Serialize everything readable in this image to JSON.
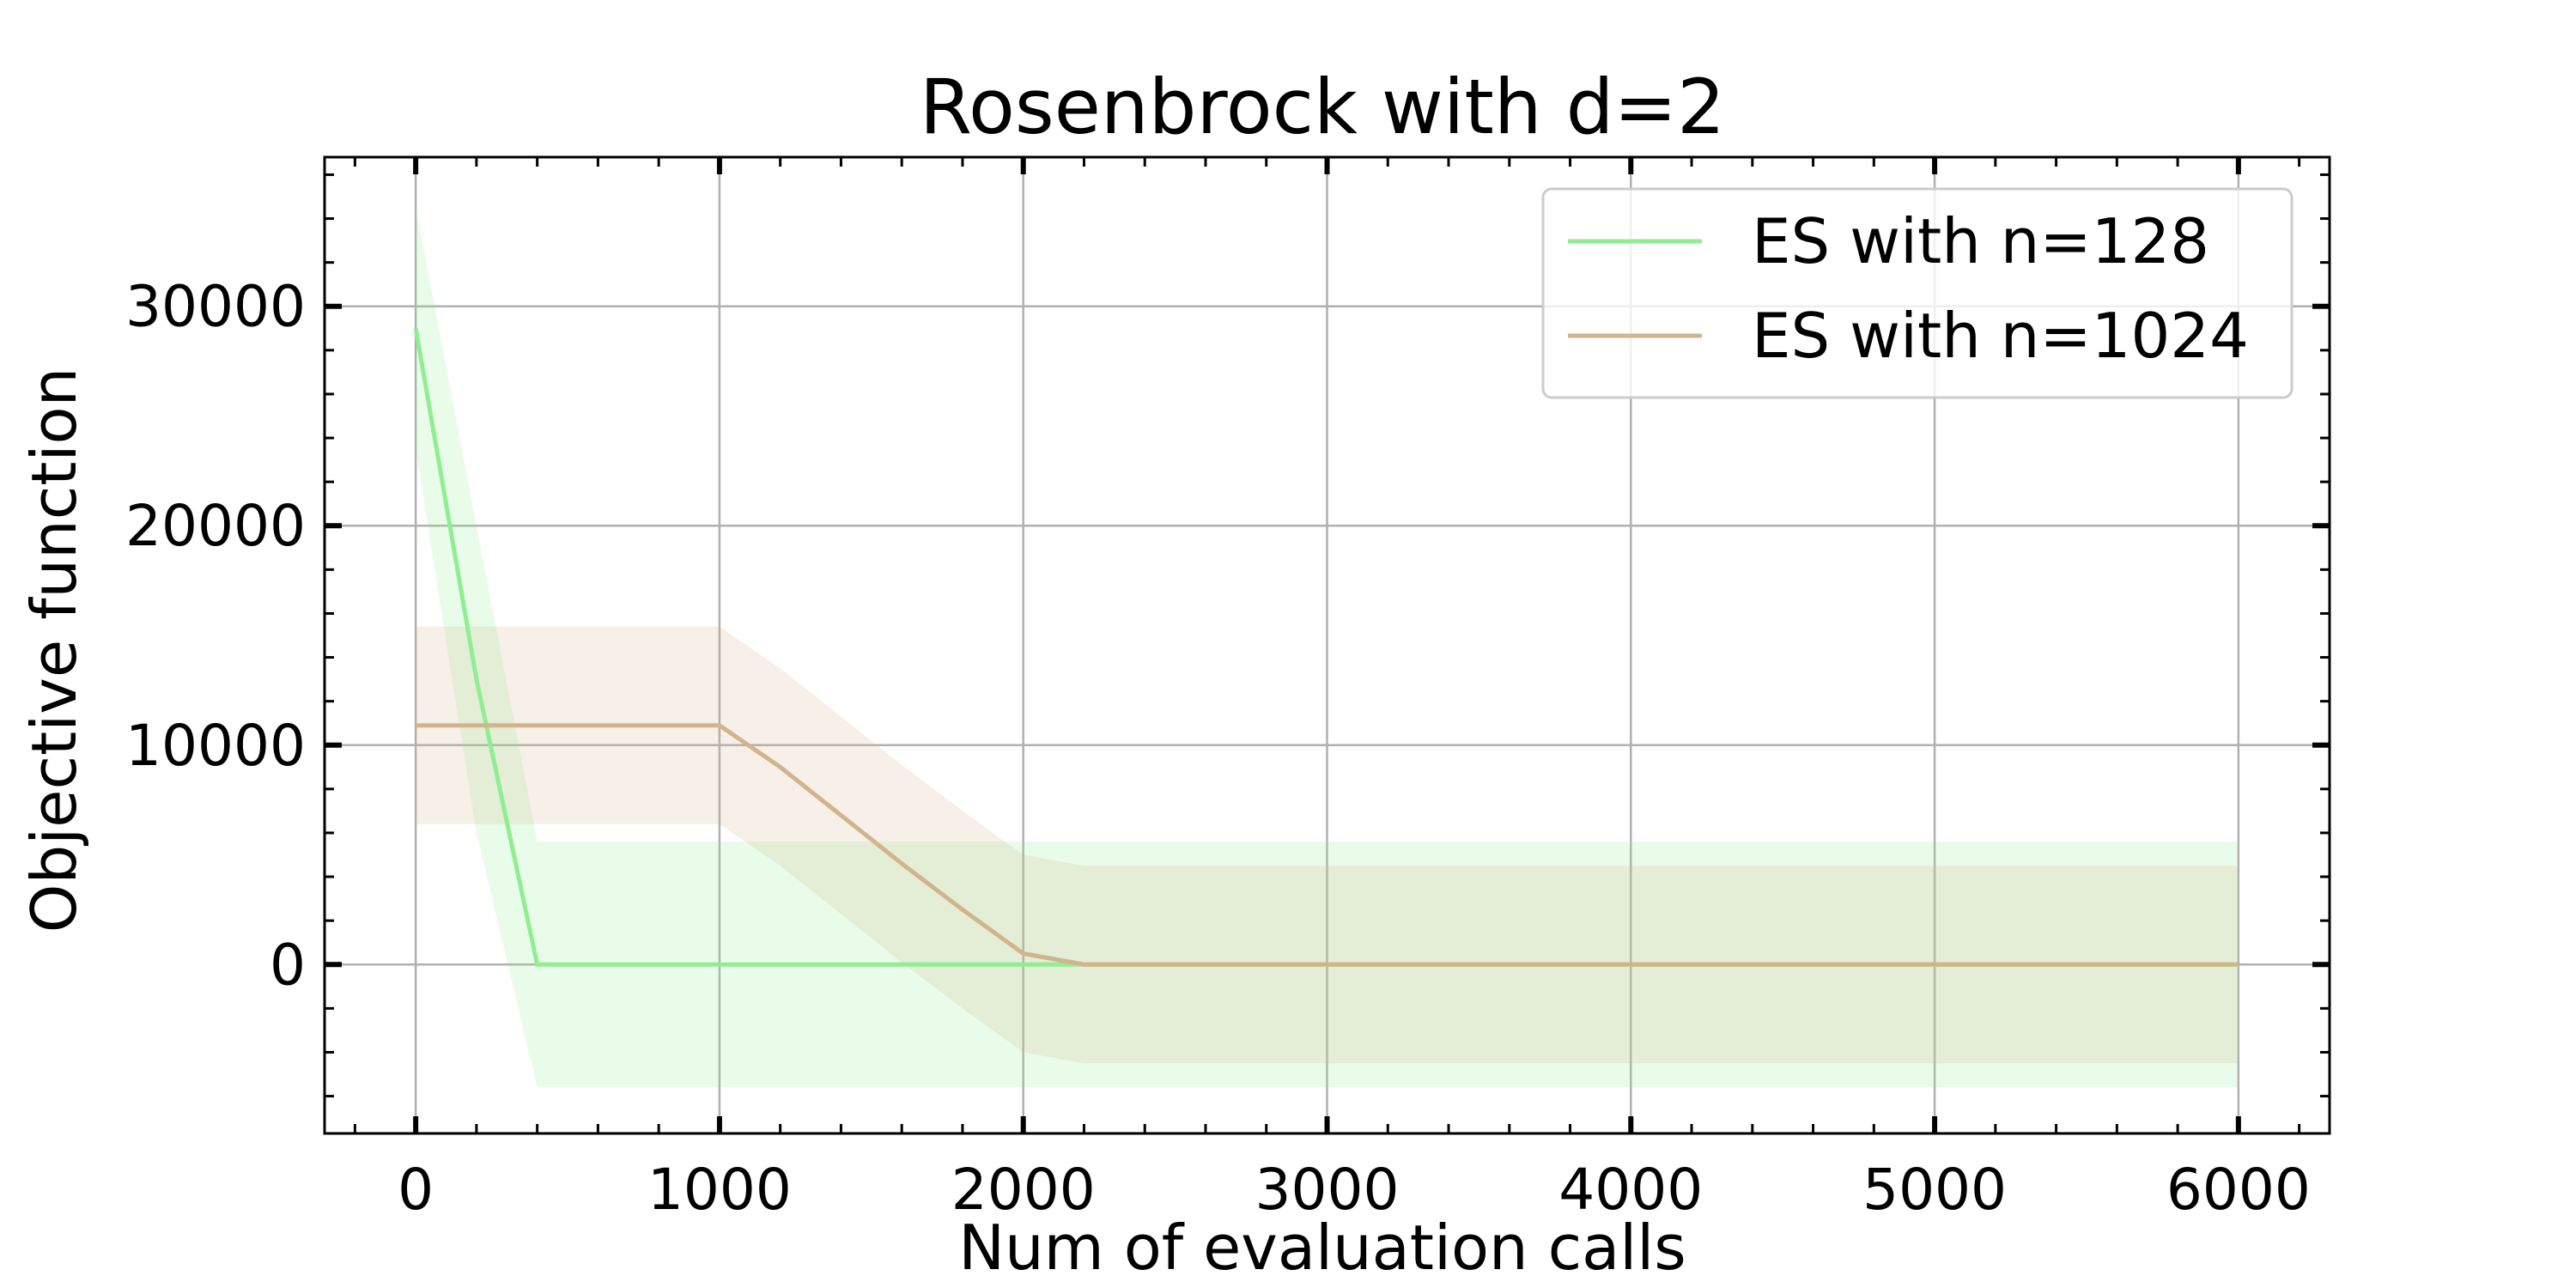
{
  "chart_data": {
    "type": "line",
    "title": "Rosenbrock with d=2",
    "xlabel": "Num of evaluation calls",
    "ylabel": "Objective function",
    "xlim": [
      -300,
      6300
    ],
    "ylim": [
      -7700,
      36800
    ],
    "xticks": [
      0,
      1000,
      2000,
      3000,
      4000,
      5000,
      6000
    ],
    "yticks": [
      0,
      10000,
      20000,
      30000
    ],
    "xtick_labels": [
      "0",
      "1000",
      "2000",
      "3000",
      "4000",
      "5000",
      "6000"
    ],
    "ytick_labels": [
      "0",
      "10000",
      "20000",
      "30000"
    ],
    "grid": true,
    "legend_position": "top-right",
    "series": [
      {
        "name": "ES with n=128",
        "color": "#90ee90",
        "x": [
          0,
          200,
          400,
          600,
          800,
          1000,
          1200,
          1400,
          1600,
          1800,
          2000,
          2200,
          2400,
          2600,
          2800,
          3000,
          4000,
          5000,
          6000
        ],
        "y": [
          29000,
          13000,
          0,
          0,
          0,
          0,
          0,
          0,
          0,
          0,
          0,
          0,
          0,
          0,
          0,
          0,
          0,
          0,
          0
        ],
        "upper": [
          34500,
          20000,
          5600,
          5600,
          5600,
          5600,
          5600,
          5600,
          5600,
          5600,
          5600,
          5600,
          5600,
          5600,
          5600,
          5600,
          5600,
          5600,
          5600
        ],
        "lower": [
          23500,
          6000,
          -5600,
          -5600,
          -5600,
          -5600,
          -5600,
          -5600,
          -5600,
          -5600,
          -5600,
          -5600,
          -5600,
          -5600,
          -5600,
          -5600,
          -5600,
          -5600,
          -5600
        ]
      },
      {
        "name": "ES with n=1024",
        "color": "#d2b48c",
        "x": [
          0,
          200,
          400,
          600,
          800,
          1000,
          1200,
          1400,
          1600,
          1800,
          2000,
          2200,
          2400,
          2600,
          2800,
          3000,
          4000,
          5000,
          6000
        ],
        "y": [
          10900,
          10900,
          10900,
          10900,
          10900,
          10900,
          9000,
          6800,
          4600,
          2500,
          500,
          0,
          0,
          0,
          0,
          0,
          0,
          0,
          0
        ],
        "upper": [
          15400,
          15400,
          15400,
          15400,
          15400,
          15400,
          13500,
          11300,
          9100,
          7000,
          5000,
          4500,
          4500,
          4500,
          4500,
          4500,
          4500,
          4500,
          4500
        ],
        "lower": [
          6400,
          6400,
          6400,
          6400,
          6400,
          6400,
          4500,
          2300,
          100,
          -2000,
          -4000,
          -4500,
          -4500,
          -4500,
          -4500,
          -4500,
          -4500,
          -4500,
          -4500
        ]
      }
    ]
  }
}
